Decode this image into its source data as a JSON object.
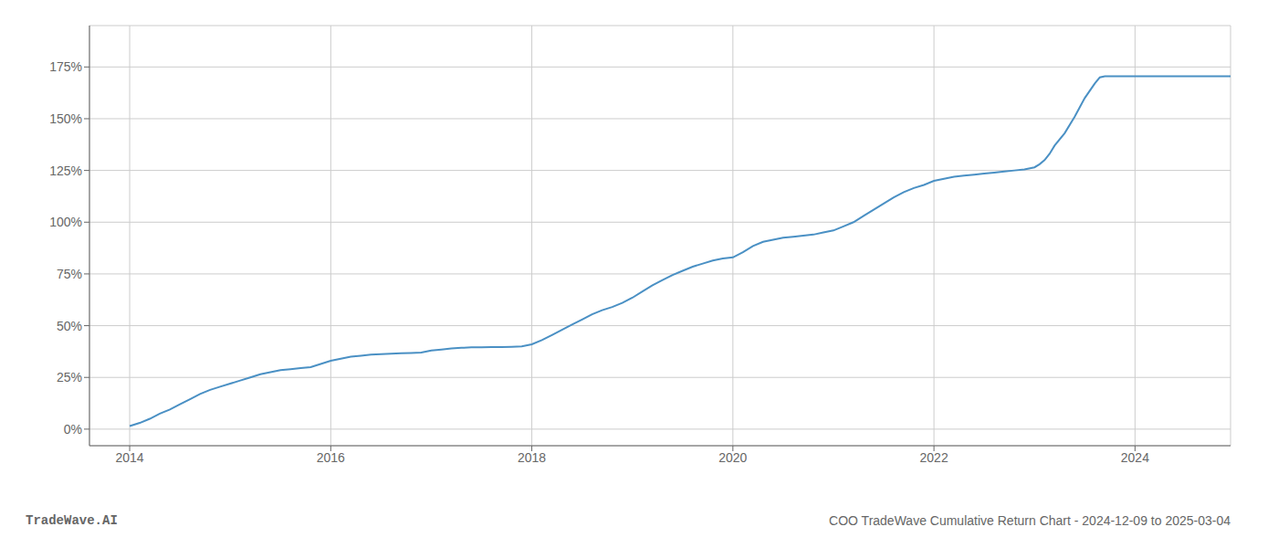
{
  "chart_data": {
    "type": "line",
    "title": "COO TradeWave Cumulative Return Chart - 2024-12-09 to 2025-03-04",
    "annotations": [
      "TradeWave.AI"
    ],
    "color": "#4a90c4",
    "grid": true,
    "x": [
      2014.0,
      2014.1,
      2014.2,
      2014.3,
      2014.4,
      2014.5,
      2014.6,
      2014.7,
      2014.8,
      2014.9,
      2015.0,
      2015.1,
      2015.2,
      2015.3,
      2015.4,
      2015.5,
      2015.6,
      2015.7,
      2015.8,
      2015.9,
      2016.0,
      2016.1,
      2016.2,
      2016.3,
      2016.4,
      2016.5,
      2016.6,
      2016.7,
      2016.8,
      2016.9,
      2017.0,
      2017.1,
      2017.2,
      2017.3,
      2017.4,
      2017.5,
      2017.6,
      2017.7,
      2017.8,
      2017.9,
      2018.0,
      2018.1,
      2018.2,
      2018.3,
      2018.4,
      2018.5,
      2018.6,
      2018.7,
      2018.8,
      2018.9,
      2019.0,
      2019.1,
      2019.2,
      2019.3,
      2019.4,
      2019.5,
      2019.6,
      2019.7,
      2019.8,
      2019.9,
      2020.0,
      2020.1,
      2020.2,
      2020.3,
      2020.4,
      2020.5,
      2020.6,
      2020.7,
      2020.8,
      2020.9,
      2021.0,
      2021.1,
      2021.2,
      2021.3,
      2021.4,
      2021.5,
      2021.6,
      2021.7,
      2021.8,
      2021.9,
      2022.0,
      2022.1,
      2022.2,
      2022.3,
      2022.4,
      2022.5,
      2022.6,
      2022.7,
      2022.8,
      2022.9,
      2023.0,
      2023.05,
      2023.1,
      2023.15,
      2023.2,
      2023.3,
      2023.4,
      2023.5,
      2023.6,
      2023.65,
      2023.7,
      2023.8,
      2023.9,
      2024.0,
      2024.2,
      2024.4,
      2024.6,
      2024.8,
      2024.95
    ],
    "values": [
      1.5,
      3.0,
      5.0,
      7.5,
      9.5,
      12.0,
      14.5,
      17.0,
      19.0,
      20.5,
      22.0,
      23.5,
      25.0,
      26.5,
      27.5,
      28.5,
      29.0,
      29.5,
      30.0,
      31.5,
      33.0,
      34.0,
      35.0,
      35.5,
      36.0,
      36.2,
      36.5,
      36.7,
      36.8,
      37.0,
      38.0,
      38.5,
      39.0,
      39.3,
      39.5,
      39.6,
      39.7,
      39.7,
      39.8,
      40.0,
      41.0,
      43.0,
      45.5,
      48.0,
      50.5,
      53.0,
      55.5,
      57.5,
      59.0,
      61.0,
      63.5,
      66.5,
      69.5,
      72.0,
      74.5,
      76.5,
      78.5,
      80.0,
      81.5,
      82.5,
      83.0,
      85.5,
      88.5,
      90.5,
      91.5,
      92.5,
      93.0,
      93.5,
      94.0,
      95.0,
      96.0,
      98.0,
      100.0,
      103.0,
      106.0,
      109.0,
      112.0,
      114.5,
      116.5,
      118.0,
      120.0,
      121.0,
      122.0,
      122.5,
      123.0,
      123.5,
      124.0,
      124.5,
      125.0,
      125.5,
      126.5,
      128.0,
      130.0,
      133.0,
      137.0,
      143.0,
      151.0,
      160.0,
      167.0,
      170.0,
      170.5,
      170.5,
      170.5,
      170.5,
      170.5,
      170.5,
      170.5,
      170.5,
      170.5
    ],
    "xlim": [
      2013.6,
      2024.95
    ],
    "ylim": [
      -8,
      195
    ],
    "xticks": [
      2014,
      2016,
      2018,
      2020,
      2022,
      2024
    ],
    "yticks": [
      {
        "value": 0,
        "label": "0%"
      },
      {
        "value": 25,
        "label": "25%"
      },
      {
        "value": 50,
        "label": "50%"
      },
      {
        "value": 75,
        "label": "75%"
      },
      {
        "value": 100,
        "label": "100%"
      },
      {
        "value": 125,
        "label": "125%"
      },
      {
        "value": 150,
        "label": "150%"
      },
      {
        "value": 175,
        "label": "175%"
      }
    ]
  }
}
